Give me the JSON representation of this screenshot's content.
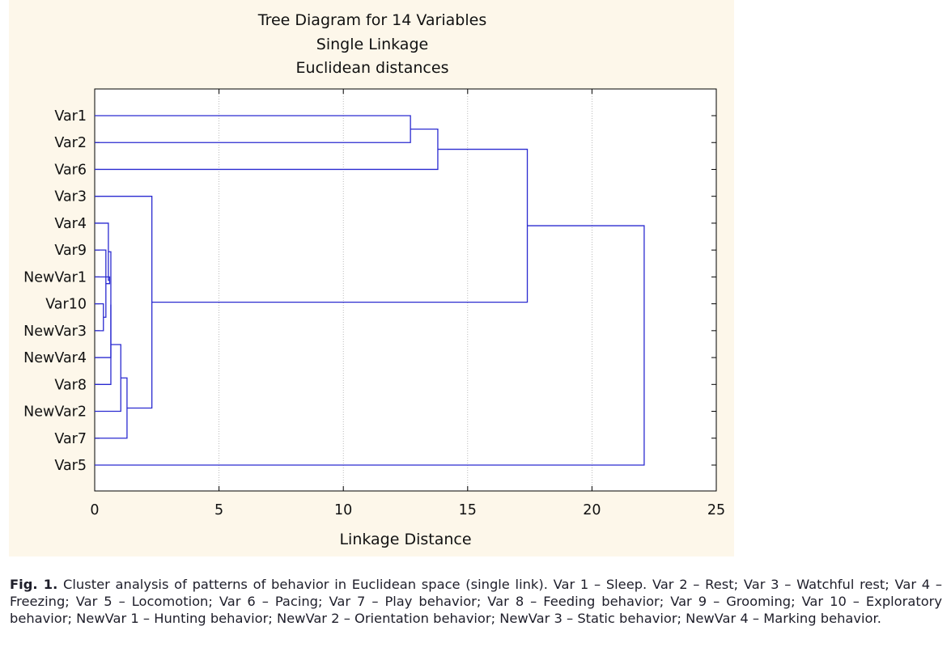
{
  "chart_data": {
    "type": "dendrogram",
    "title": [
      "Tree Diagram for 14  Variables",
      "Single Linkage",
      "Euclidean distances"
    ],
    "xlabel": "Linkage Distance",
    "xlim": [
      0,
      25
    ],
    "xticks": [
      "0",
      "5",
      "10",
      "15",
      "20",
      "25"
    ],
    "xtick_values": [
      0,
      5,
      10,
      15,
      20,
      25
    ],
    "grid": true,
    "colors": {
      "lines": "#2a2ad0",
      "grid": "#aaaaaa",
      "background": "#fdf7ea",
      "plot": "#ffffff"
    },
    "leaves": [
      "Var1",
      "Var2",
      "Var6",
      "Var3",
      "Var4",
      "Var9",
      "NewVar1",
      "Var10",
      "NewVar3",
      "NewVar4",
      "Var8",
      "NewVar2",
      "Var7",
      "Var5"
    ],
    "merges": [
      {
        "children": [
          7,
          8
        ],
        "distance": 0.35
      },
      {
        "children": [
          5,
          14
        ],
        "distance": 0.45
      },
      {
        "children": [
          15,
          6
        ],
        "distance": 0.6
      },
      {
        "children": [
          4,
          16
        ],
        "distance": 0.55
      },
      {
        "children": [
          17,
          9
        ],
        "distance": 0.65
      },
      {
        "children": [
          18,
          10
        ],
        "distance": 0.65
      },
      {
        "children": [
          19,
          11
        ],
        "distance": 1.05
      },
      {
        "children": [
          20,
          12
        ],
        "distance": 1.3
      },
      {
        "children": [
          3,
          21
        ],
        "distance": 2.3
      },
      {
        "children": [
          0,
          1
        ],
        "distance": 12.7
      },
      {
        "children": [
          23,
          2
        ],
        "distance": 13.8
      },
      {
        "children": [
          24,
          22
        ],
        "distance": 17.4
      },
      {
        "children": [
          25,
          13
        ],
        "distance": 22.1
      }
    ]
  },
  "caption": {
    "label": "Fig. 1.",
    "text": " Cluster analysis of patterns of behavior in Euclidean space (single link). Var 1 – Sleep. Var 2 – Rest; Var 3 – Watchful rest; Var 4 – Freezing; Var 5 – Locomotion; Var 6 – Pacing; Var 7 – Play behavior; Var 8 – Feeding behavior; Var 9 – Grooming; Var 10 – Exploratory behavior; NewVar 1 – Hunting behavior; NewVar 2 – Orientation behavior; NewVar 3 – Static behavior; NewVar 4 – Marking behavior."
  }
}
